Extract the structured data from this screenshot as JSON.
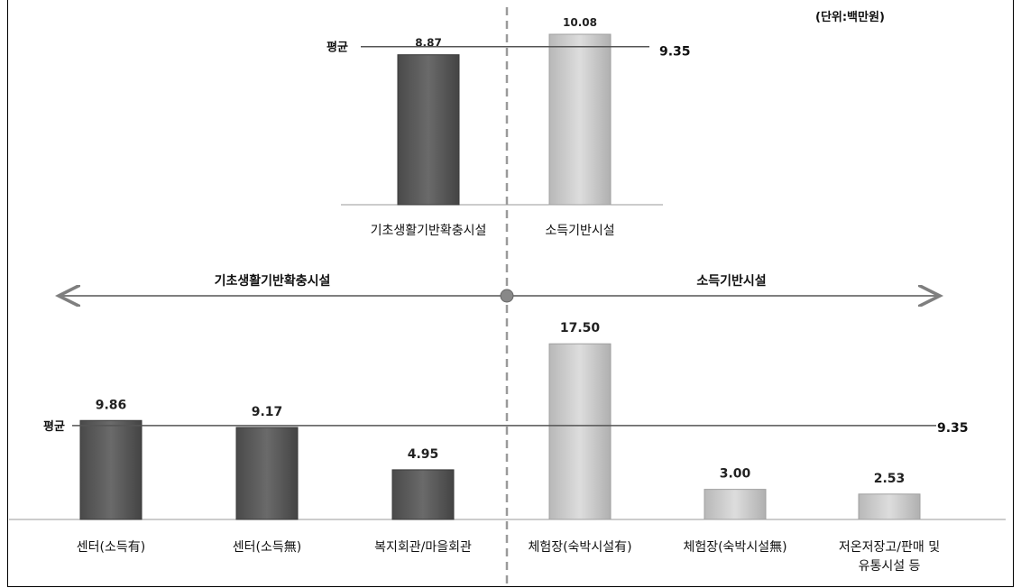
{
  "unit_label": "(단위:백만원)",
  "colors": {
    "dark_bar": "#595959",
    "light_bar": "#c8c8c8",
    "avg_line": "#555555",
    "divider": "#9a9a9a",
    "arrow": "#7f7f7f"
  },
  "chart_data": [
    {
      "type": "bar",
      "categories": [
        "기초생활기반확충시설",
        "소득기반시설"
      ],
      "values": [
        8.87,
        10.08
      ],
      "value_labels": [
        "8.87",
        "10.08"
      ],
      "bar_colors": [
        "dark",
        "light"
      ],
      "average": {
        "label": "평균",
        "value": 9.35,
        "value_label": "9.35"
      }
    },
    {
      "type": "bar",
      "group_labels": [
        "기초생활기반확충시설",
        "소득기반시설"
      ],
      "categories": [
        [
          "센터(소득有)"
        ],
        [
          "센터(소득無)"
        ],
        [
          "복지회관/마을회관"
        ],
        [
          "체험장(숙박시설有)"
        ],
        [
          "체험장(숙박시설無)"
        ],
        [
          "저온저장고/판매 및",
          "유통시설 등"
        ]
      ],
      "values": [
        9.86,
        9.17,
        4.95,
        17.5,
        3.0,
        2.53
      ],
      "value_labels": [
        "9.86",
        "9.17",
        "4.95",
        "17.50",
        "3.00",
        "2.53"
      ],
      "bar_colors": [
        "dark",
        "dark",
        "dark",
        "light",
        "light",
        "light"
      ],
      "average": {
        "label": "평균",
        "value": 9.35,
        "value_label": "9.35"
      }
    }
  ]
}
